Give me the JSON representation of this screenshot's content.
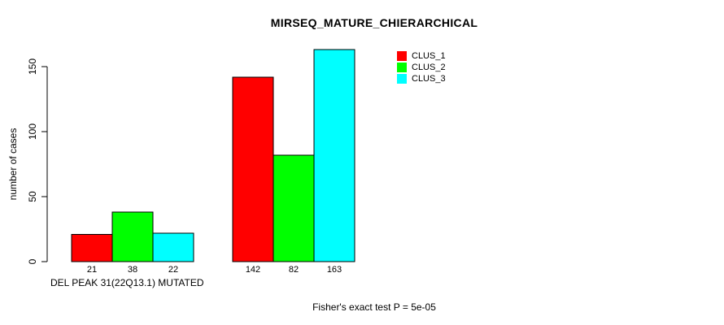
{
  "chart_data": {
    "type": "bar",
    "title": "MIRSEQ_MATURE_CHIERARCHICAL",
    "ylabel": "number of cases",
    "xlabel": "DEL PEAK 31(22Q13.1) MUTATED",
    "footnote": "Fisher's exact test P = 5e-05",
    "yticks": [
      0,
      50,
      100,
      150
    ],
    "ylim": [
      0,
      163
    ],
    "grid": false,
    "legend_position": "top-right",
    "background_color": "#FFFFFF",
    "axis_color": "#000000",
    "bar_border_color": "#000000",
    "series": [
      {
        "name": "CLUS_1",
        "color": "#FF0000",
        "values": [
          21,
          142
        ]
      },
      {
        "name": "CLUS_2",
        "color": "#00FF00",
        "values": [
          38,
          82
        ]
      },
      {
        "name": "CLUS_3",
        "color": "#00FFFF",
        "values": [
          22,
          163
        ]
      }
    ]
  }
}
